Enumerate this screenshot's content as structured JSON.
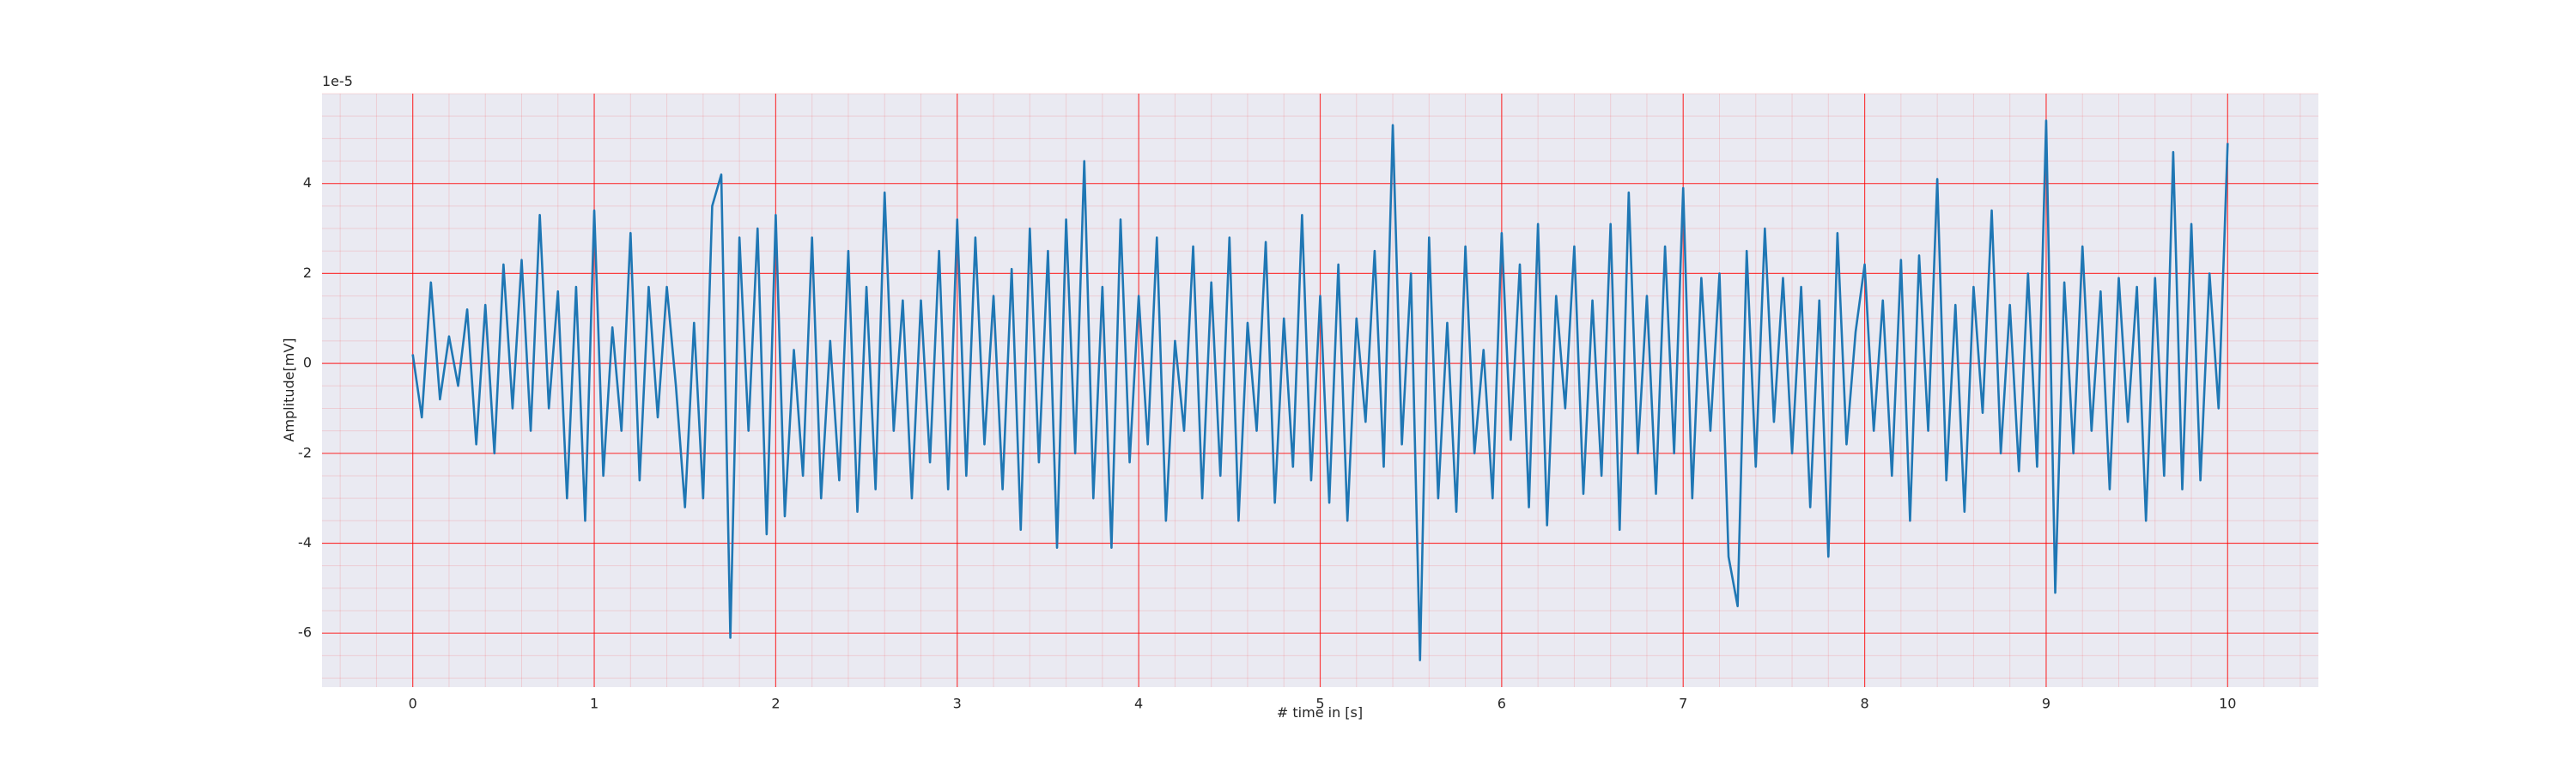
{
  "chart_data": {
    "type": "line",
    "x_label": "# time in [s]",
    "y_label": "Amplitude[mV]",
    "y_offset_label": "1e-5",
    "x": [
      0,
      0.05,
      0.1,
      0.15,
      0.2,
      0.25,
      0.3,
      0.35,
      0.4,
      0.45,
      0.5,
      0.55,
      0.6,
      0.65,
      0.7,
      0.75,
      0.8,
      0.85,
      0.9,
      0.95,
      1,
      1.05,
      1.1,
      1.15,
      1.2,
      1.25,
      1.3,
      1.35,
      1.4,
      1.45,
      1.5,
      1.55,
      1.6,
      1.65,
      1.7,
      1.75,
      1.8,
      1.85,
      1.9,
      1.95,
      2,
      2.05,
      2.1,
      2.15,
      2.2,
      2.25,
      2.3,
      2.35,
      2.4,
      2.45,
      2.5,
      2.55,
      2.6,
      2.65,
      2.7,
      2.75,
      2.8,
      2.85,
      2.9,
      2.95,
      3,
      3.05,
      3.1,
      3.15,
      3.2,
      3.25,
      3.3,
      3.35,
      3.4,
      3.45,
      3.5,
      3.55,
      3.6,
      3.65,
      3.7,
      3.75,
      3.8,
      3.85,
      3.9,
      3.95,
      4,
      4.05,
      4.1,
      4.15,
      4.2,
      4.25,
      4.3,
      4.35,
      4.4,
      4.45,
      4.5,
      4.55,
      4.6,
      4.65,
      4.7,
      4.75,
      4.8,
      4.85,
      4.9,
      4.95,
      5,
      5.05,
      5.1,
      5.15,
      5.2,
      5.25,
      5.3,
      5.35,
      5.4,
      5.45,
      5.5,
      5.55,
      5.6,
      5.65,
      5.7,
      5.75,
      5.8,
      5.85,
      5.9,
      5.95,
      6,
      6.05,
      6.1,
      6.15,
      6.2,
      6.25,
      6.3,
      6.35,
      6.4,
      6.45,
      6.5,
      6.55,
      6.6,
      6.65,
      6.7,
      6.75,
      6.8,
      6.85,
      6.9,
      6.95,
      7,
      7.05,
      7.1,
      7.15,
      7.2,
      7.25,
      7.3,
      7.35,
      7.4,
      7.45,
      7.5,
      7.55,
      7.6,
      7.65,
      7.7,
      7.75,
      7.8,
      7.85,
      7.9,
      7.95,
      8,
      8.05,
      8.1,
      8.15,
      8.2,
      8.25,
      8.3,
      8.35,
      8.4,
      8.45,
      8.5,
      8.55,
      8.6,
      8.65,
      8.7,
      8.75,
      8.8,
      8.85,
      8.9,
      8.95,
      9,
      9.05,
      9.1,
      9.15,
      9.2,
      9.25,
      9.3,
      9.35,
      9.4,
      9.45,
      9.5,
      9.55,
      9.6,
      9.65,
      9.7,
      9.75,
      9.8,
      9.85,
      9.9,
      9.95,
      10
    ],
    "series": [
      {
        "color": "#1f77b4",
        "values": [
          0.2,
          -1.2,
          1.8,
          -0.8,
          0.6,
          -0.5,
          1.2,
          -1.8,
          1.3,
          -2.0,
          2.2,
          -1.0,
          2.3,
          -1.5,
          3.3,
          -1.0,
          1.6,
          -3.0,
          1.7,
          -3.5,
          3.4,
          -2.5,
          0.8,
          -1.5,
          2.9,
          -2.6,
          1.7,
          -1.2,
          1.7,
          -0.5,
          -3.2,
          0.9,
          -3.0,
          3.5,
          4.2,
          -6.1,
          2.8,
          -1.5,
          3.0,
          -3.8,
          3.3,
          -3.4,
          0.3,
          -2.5,
          2.8,
          -3.0,
          0.5,
          -2.6,
          2.5,
          -3.3,
          1.7,
          -2.8,
          3.8,
          -1.5,
          1.4,
          -3.0,
          1.4,
          -2.2,
          2.5,
          -2.8,
          3.2,
          -2.5,
          2.8,
          -1.8,
          1.5,
          -2.8,
          2.1,
          -3.7,
          3.0,
          -2.2,
          2.5,
          -4.1,
          3.2,
          -2.0,
          4.5,
          -3.0,
          1.7,
          -4.1,
          3.2,
          -2.2,
          1.5,
          -1.8,
          2.8,
          -3.5,
          0.5,
          -1.5,
          2.6,
          -3.0,
          1.8,
          -2.5,
          2.8,
          -3.5,
          0.9,
          -1.5,
          2.7,
          -3.1,
          1.0,
          -2.3,
          3.3,
          -2.6,
          1.5,
          -3.1,
          2.2,
          -3.5,
          1.0,
          -1.3,
          2.5,
          -2.3,
          5.3,
          -1.8,
          2.0,
          -6.6,
          2.8,
          -3.0,
          0.9,
          -3.3,
          2.6,
          -2.0,
          0.3,
          -3.0,
          2.9,
          -1.7,
          2.2,
          -3.2,
          3.1,
          -3.6,
          1.5,
          -1.0,
          2.6,
          -2.9,
          1.4,
          -2.5,
          3.1,
          -3.7,
          3.8,
          -2.0,
          1.5,
          -2.9,
          2.6,
          -2.0,
          3.9,
          -3.0,
          1.9,
          -1.5,
          2.0,
          -4.3,
          -5.4,
          2.5,
          -2.3,
          3.0,
          -1.3,
          1.9,
          -2.0,
          1.7,
          -3.2,
          1.4,
          -4.3,
          2.9,
          -1.8,
          0.7,
          2.2,
          -1.5,
          1.4,
          -2.5,
          2.3,
          -3.5,
          2.4,
          -1.5,
          4.1,
          -2.6,
          1.3,
          -3.3,
          1.7,
          -1.1,
          3.4,
          -2.0,
          1.3,
          -2.4,
          2.0,
          -2.3,
          5.4,
          -5.1,
          1.8,
          -2.0,
          2.6,
          -1.5,
          1.6,
          -2.8,
          1.9,
          -1.3,
          1.7,
          -3.5,
          1.9,
          -2.5,
          4.7,
          -2.8,
          3.1,
          -2.6,
          2.0,
          -1.0,
          4.9
        ]
      }
    ],
    "xlim": [
      -0.5,
      10.5
    ],
    "xticks": [
      0,
      1,
      2,
      3,
      4,
      5,
      6,
      7,
      8,
      9,
      10
    ],
    "ylim": [
      -7.2,
      6.0
    ],
    "yticks": [
      -6,
      -4,
      -2,
      0,
      2,
      4
    ],
    "grid": true,
    "grid_color": "#ff0000",
    "minor_grid": true,
    "background": "#eaeaf2"
  }
}
